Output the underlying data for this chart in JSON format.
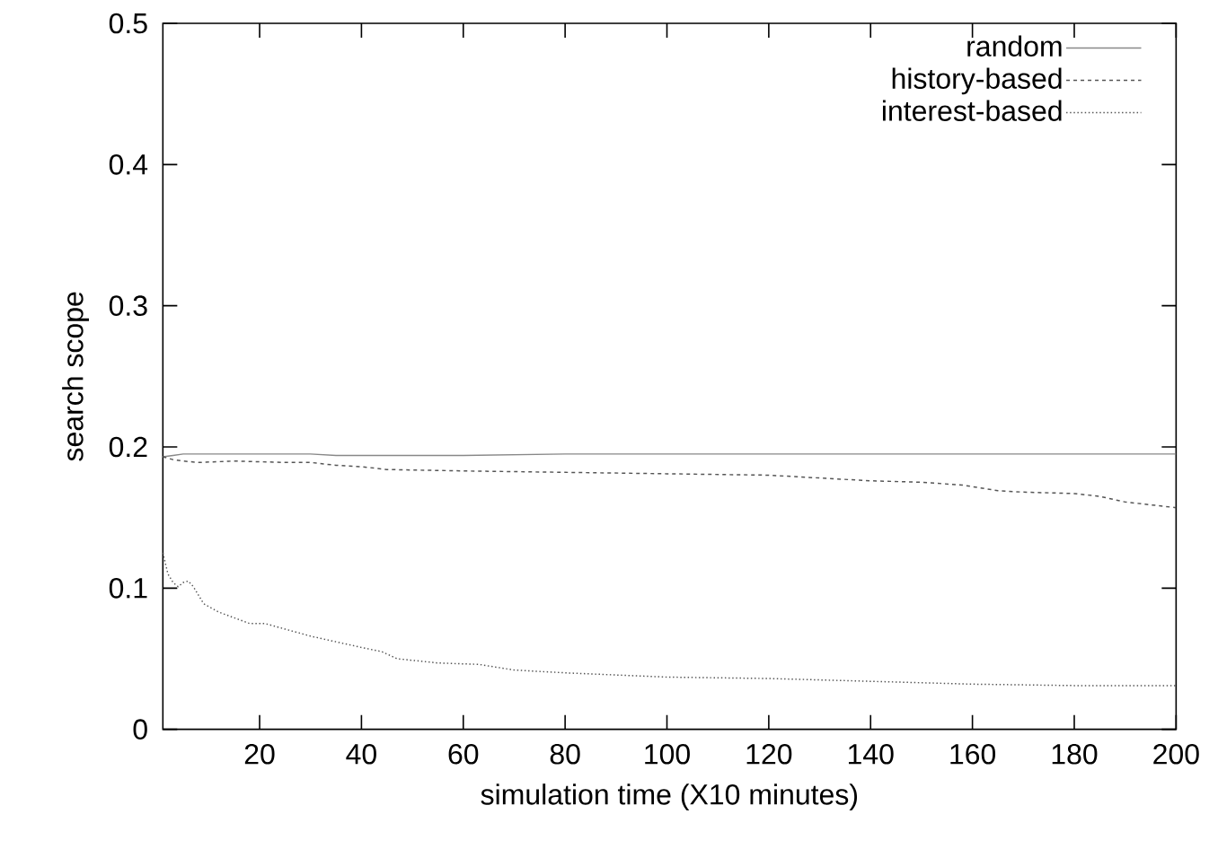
{
  "chart_data": {
    "type": "line",
    "xlabel": "simulation time (X10 minutes)",
    "ylabel": "search scope",
    "xlim": [
      1,
      200
    ],
    "ylim": [
      0,
      0.5
    ],
    "xticks": [
      20,
      40,
      60,
      80,
      100,
      120,
      140,
      160,
      180,
      200
    ],
    "yticks": [
      0,
      0.1,
      0.2,
      0.3,
      0.4,
      0.5
    ],
    "grid": false,
    "legend": "top right",
    "series": [
      {
        "name": "random",
        "color": "#888888",
        "line_style": "solid",
        "x": [
          1,
          3,
          5,
          10,
          20,
          30,
          35,
          40,
          50,
          60,
          80,
          100,
          120,
          140,
          160,
          180,
          200
        ],
        "values": [
          0.193,
          0.194,
          0.195,
          0.195,
          0.195,
          0.195,
          0.194,
          0.194,
          0.194,
          0.194,
          0.195,
          0.195,
          0.195,
          0.195,
          0.195,
          0.195,
          0.195
        ]
      },
      {
        "name": "history-based",
        "color": "#555555",
        "line_style": "dashed",
        "x": [
          1,
          3,
          5,
          8,
          15,
          25,
          30,
          35,
          40,
          45,
          60,
          80,
          100,
          120,
          125,
          130,
          140,
          150,
          158,
          165,
          170,
          180,
          185,
          190,
          200
        ],
        "values": [
          0.193,
          0.191,
          0.19,
          0.189,
          0.19,
          0.189,
          0.189,
          0.187,
          0.186,
          0.184,
          0.183,
          0.182,
          0.181,
          0.18,
          0.179,
          0.178,
          0.176,
          0.175,
          0.173,
          0.169,
          0.168,
          0.167,
          0.165,
          0.161,
          0.157
        ]
      },
      {
        "name": "interest-based",
        "color": "#555555",
        "line_style": "dotted",
        "x": [
          1,
          2,
          3,
          4,
          5,
          6,
          7,
          9,
          12,
          15,
          18,
          21,
          25,
          30,
          35,
          40,
          44,
          47,
          55,
          63,
          70,
          80,
          100,
          120,
          140,
          160,
          180,
          200
        ],
        "values": [
          0.125,
          0.11,
          0.104,
          0.101,
          0.104,
          0.105,
          0.101,
          0.089,
          0.083,
          0.079,
          0.075,
          0.075,
          0.071,
          0.066,
          0.062,
          0.058,
          0.055,
          0.05,
          0.047,
          0.046,
          0.042,
          0.04,
          0.037,
          0.036,
          0.034,
          0.032,
          0.031,
          0.031
        ]
      }
    ]
  }
}
